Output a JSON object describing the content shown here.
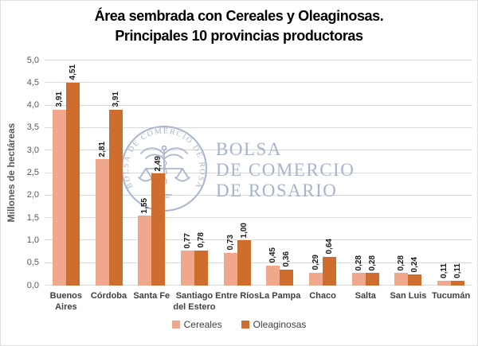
{
  "title": {
    "line1": "Área sembrada con Cereales y Oleaginosas.",
    "line2": "Principales 10 provincias productoras"
  },
  "watermark": {
    "seal_text": "BOLSA DE COMERCIO DE ROSARIO",
    "line1": "BOLSA",
    "line2": "DE COMERCIO",
    "line3": "DE ROSARIO",
    "color": "#a8b4cc"
  },
  "chart_data": {
    "type": "bar",
    "categories": [
      "Buenos Aires",
      "Córdoba",
      "Santa Fe",
      "Santiago del Estero",
      "Entre Ríos",
      "La Pampa",
      "Chaco",
      "Salta",
      "San Luis",
      "Tucumán"
    ],
    "tick_labels": [
      "Buenos\nAires",
      "Córdoba",
      "Santa Fe",
      "Santiago\ndel Estero",
      "Entre Ríos",
      "La Pampa",
      "Chaco",
      "Salta",
      "San Luis",
      "Tucumán"
    ],
    "series": [
      {
        "name": "Cereales",
        "color": "#f0a78c",
        "values": [
          3.91,
          2.81,
          1.55,
          0.77,
          0.73,
          0.45,
          0.29,
          0.28,
          0.28,
          0.11
        ]
      },
      {
        "name": "Oleaginosas",
        "color": "#ce6d2d",
        "values": [
          4.51,
          3.91,
          2.49,
          0.78,
          1.0,
          0.36,
          0.64,
          0.28,
          0.24,
          0.11
        ]
      }
    ],
    "ylabel": "Millones de hectáreas",
    "ylim": [
      0,
      5
    ],
    "ytick_step": 0.5,
    "grid": true,
    "grid_color": "#d9d9d9",
    "legend_position": "bottom",
    "decimal_separator": ",",
    "value_decimals": 2,
    "tick_decimals": 1
  }
}
